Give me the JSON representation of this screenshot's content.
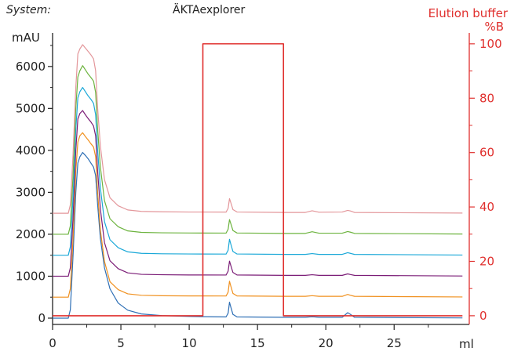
{
  "header": {
    "system_label": "System:",
    "system_value": "ÄKTAexplorer"
  },
  "chart_data": {
    "type": "line",
    "x_unit": "ml",
    "xlim": [
      0,
      30.5
    ],
    "x_ticks": [
      0,
      5,
      10,
      15,
      20,
      25
    ],
    "left_axis": {
      "unit": "mAU",
      "ylim": [
        -150,
        6800
      ],
      "ticks": [
        0,
        1000,
        2000,
        3000,
        4000,
        5000,
        6000
      ]
    },
    "right_axis": {
      "title": "Elution buffer",
      "unit": "%B",
      "ylim": [
        -3.2,
        104
      ],
      "ticks": [
        0,
        20,
        40,
        60,
        80,
        100
      ],
      "color": "#e0302e"
    },
    "grid": false,
    "legend": "none",
    "series": [
      {
        "color": "#2e6fb5",
        "axis": "left",
        "points": [
          [
            0,
            0
          ],
          [
            1.15,
            0
          ],
          [
            1.3,
            200
          ],
          [
            1.5,
            1500
          ],
          [
            1.7,
            3000
          ],
          [
            1.85,
            3700
          ],
          [
            2.0,
            3850
          ],
          [
            2.2,
            3950
          ],
          [
            2.4,
            3880
          ],
          [
            2.6,
            3800
          ],
          [
            2.8,
            3700
          ],
          [
            3.0,
            3600
          ],
          [
            3.15,
            3400
          ],
          [
            3.3,
            2700
          ],
          [
            3.5,
            1900
          ],
          [
            3.8,
            1200
          ],
          [
            4.2,
            700
          ],
          [
            4.8,
            360
          ],
          [
            5.5,
            190
          ],
          [
            6.5,
            100
          ],
          [
            8,
            60
          ],
          [
            10,
            40
          ],
          [
            12.7,
            30
          ],
          [
            12.85,
            120
          ],
          [
            12.95,
            380
          ],
          [
            13.05,
            260
          ],
          [
            13.2,
            90
          ],
          [
            13.5,
            30
          ],
          [
            17,
            20
          ],
          [
            18.5,
            20
          ],
          [
            19,
            35
          ],
          [
            19.5,
            20
          ],
          [
            21.2,
            20
          ],
          [
            21.6,
            130
          ],
          [
            21.8,
            90
          ],
          [
            22.1,
            20
          ],
          [
            30,
            5
          ]
        ]
      },
      {
        "color": "#f0901e",
        "axis": "left",
        "points": [
          [
            0,
            500
          ],
          [
            1.15,
            500
          ],
          [
            1.3,
            700
          ],
          [
            1.5,
            1900
          ],
          [
            1.7,
            3500
          ],
          [
            1.85,
            4200
          ],
          [
            2.0,
            4350
          ],
          [
            2.2,
            4420
          ],
          [
            2.4,
            4330
          ],
          [
            2.6,
            4250
          ],
          [
            2.8,
            4160
          ],
          [
            3.0,
            4080
          ],
          [
            3.15,
            3850
          ],
          [
            3.3,
            3000
          ],
          [
            3.5,
            2100
          ],
          [
            3.8,
            1350
          ],
          [
            4.2,
            870
          ],
          [
            4.8,
            680
          ],
          [
            5.5,
            580
          ],
          [
            6.5,
            545
          ],
          [
            8,
            535
          ],
          [
            10,
            530
          ],
          [
            12.7,
            528
          ],
          [
            12.85,
            620
          ],
          [
            12.95,
            880
          ],
          [
            13.05,
            760
          ],
          [
            13.2,
            590
          ],
          [
            13.5,
            530
          ],
          [
            17,
            520
          ],
          [
            18.5,
            520
          ],
          [
            19,
            535
          ],
          [
            19.5,
            520
          ],
          [
            21.2,
            520
          ],
          [
            21.6,
            565
          ],
          [
            21.8,
            545
          ],
          [
            22.1,
            520
          ],
          [
            30,
            505
          ]
        ]
      },
      {
        "color": "#7b1d77",
        "axis": "left",
        "points": [
          [
            0,
            1000
          ],
          [
            1.15,
            1000
          ],
          [
            1.3,
            1200
          ],
          [
            1.5,
            2400
          ],
          [
            1.7,
            4000
          ],
          [
            1.85,
            4750
          ],
          [
            2.0,
            4880
          ],
          [
            2.2,
            4950
          ],
          [
            2.4,
            4850
          ],
          [
            2.6,
            4760
          ],
          [
            2.8,
            4680
          ],
          [
            3.0,
            4580
          ],
          [
            3.15,
            4350
          ],
          [
            3.3,
            3500
          ],
          [
            3.5,
            2600
          ],
          [
            3.8,
            1800
          ],
          [
            4.2,
            1370
          ],
          [
            4.8,
            1180
          ],
          [
            5.5,
            1080
          ],
          [
            6.5,
            1045
          ],
          [
            8,
            1035
          ],
          [
            10,
            1030
          ],
          [
            12.7,
            1028
          ],
          [
            12.85,
            1120
          ],
          [
            12.95,
            1360
          ],
          [
            13.05,
            1250
          ],
          [
            13.2,
            1090
          ],
          [
            13.5,
            1030
          ],
          [
            17,
            1020
          ],
          [
            18.5,
            1020
          ],
          [
            19,
            1035
          ],
          [
            19.5,
            1020
          ],
          [
            21.2,
            1020
          ],
          [
            21.6,
            1055
          ],
          [
            21.8,
            1040
          ],
          [
            22.1,
            1020
          ],
          [
            30,
            1005
          ]
        ]
      },
      {
        "color": "#1aa8d8",
        "axis": "left",
        "points": [
          [
            0,
            1500
          ],
          [
            1.15,
            1500
          ],
          [
            1.3,
            1700
          ],
          [
            1.5,
            2900
          ],
          [
            1.7,
            4500
          ],
          [
            1.85,
            5250
          ],
          [
            2.0,
            5400
          ],
          [
            2.2,
            5500
          ],
          [
            2.4,
            5400
          ],
          [
            2.6,
            5300
          ],
          [
            2.8,
            5220
          ],
          [
            3.0,
            5120
          ],
          [
            3.15,
            4850
          ],
          [
            3.3,
            4000
          ],
          [
            3.5,
            3100
          ],
          [
            3.8,
            2300
          ],
          [
            4.2,
            1870
          ],
          [
            4.8,
            1680
          ],
          [
            5.5,
            1580
          ],
          [
            6.5,
            1545
          ],
          [
            8,
            1535
          ],
          [
            10,
            1530
          ],
          [
            12.7,
            1528
          ],
          [
            12.85,
            1620
          ],
          [
            12.95,
            1880
          ],
          [
            13.05,
            1760
          ],
          [
            13.2,
            1590
          ],
          [
            13.5,
            1530
          ],
          [
            17,
            1520
          ],
          [
            18.5,
            1520
          ],
          [
            19,
            1540
          ],
          [
            19.5,
            1520
          ],
          [
            21.2,
            1520
          ],
          [
            21.6,
            1560
          ],
          [
            21.8,
            1545
          ],
          [
            22.1,
            1520
          ],
          [
            30,
            1505
          ]
        ]
      },
      {
        "color": "#6cb33e",
        "axis": "left",
        "points": [
          [
            0,
            2000
          ],
          [
            1.15,
            2000
          ],
          [
            1.3,
            2200
          ],
          [
            1.5,
            3400
          ],
          [
            1.7,
            5000
          ],
          [
            1.85,
            5750
          ],
          [
            2.0,
            5900
          ],
          [
            2.2,
            6020
          ],
          [
            2.4,
            5920
          ],
          [
            2.6,
            5820
          ],
          [
            2.8,
            5740
          ],
          [
            3.0,
            5650
          ],
          [
            3.15,
            5380
          ],
          [
            3.3,
            4500
          ],
          [
            3.5,
            3600
          ],
          [
            3.8,
            2800
          ],
          [
            4.2,
            2370
          ],
          [
            4.8,
            2180
          ],
          [
            5.5,
            2080
          ],
          [
            6.5,
            2045
          ],
          [
            8,
            2035
          ],
          [
            10,
            2030
          ],
          [
            12.7,
            2028
          ],
          [
            12.85,
            2120
          ],
          [
            12.95,
            2350
          ],
          [
            13.05,
            2250
          ],
          [
            13.2,
            2090
          ],
          [
            13.5,
            2030
          ],
          [
            17,
            2020
          ],
          [
            18.5,
            2020
          ],
          [
            19,
            2060
          ],
          [
            19.5,
            2025
          ],
          [
            21.2,
            2025
          ],
          [
            21.6,
            2065
          ],
          [
            21.8,
            2050
          ],
          [
            22.1,
            2020
          ],
          [
            30,
            2005
          ]
        ]
      },
      {
        "color": "#e3969a",
        "axis": "left",
        "points": [
          [
            0,
            2500
          ],
          [
            1.15,
            2500
          ],
          [
            1.3,
            2700
          ],
          [
            1.5,
            3900
          ],
          [
            1.7,
            5500
          ],
          [
            1.85,
            6300
          ],
          [
            2.0,
            6420
          ],
          [
            2.2,
            6520
          ],
          [
            2.4,
            6440
          ],
          [
            2.6,
            6360
          ],
          [
            2.8,
            6280
          ],
          [
            3.0,
            6180
          ],
          [
            3.15,
            5900
          ],
          [
            3.3,
            5000
          ],
          [
            3.5,
            4100
          ],
          [
            3.8,
            3300
          ],
          [
            4.2,
            2870
          ],
          [
            4.8,
            2680
          ],
          [
            5.5,
            2580
          ],
          [
            6.5,
            2545
          ],
          [
            8,
            2535
          ],
          [
            10,
            2530
          ],
          [
            12.7,
            2528
          ],
          [
            12.85,
            2620
          ],
          [
            12.95,
            2850
          ],
          [
            13.05,
            2750
          ],
          [
            13.2,
            2590
          ],
          [
            13.5,
            2530
          ],
          [
            17,
            2520
          ],
          [
            18.5,
            2520
          ],
          [
            19,
            2560
          ],
          [
            19.5,
            2525
          ],
          [
            21.2,
            2530
          ],
          [
            21.6,
            2570
          ],
          [
            21.8,
            2555
          ],
          [
            22.1,
            2520
          ],
          [
            30,
            2505
          ]
        ]
      },
      {
        "color": "#e0302e",
        "axis": "right",
        "points": [
          [
            0,
            0
          ],
          [
            11,
            0
          ],
          [
            11,
            100
          ],
          [
            16.9,
            100
          ],
          [
            16.9,
            0
          ],
          [
            30,
            0
          ]
        ]
      }
    ]
  }
}
